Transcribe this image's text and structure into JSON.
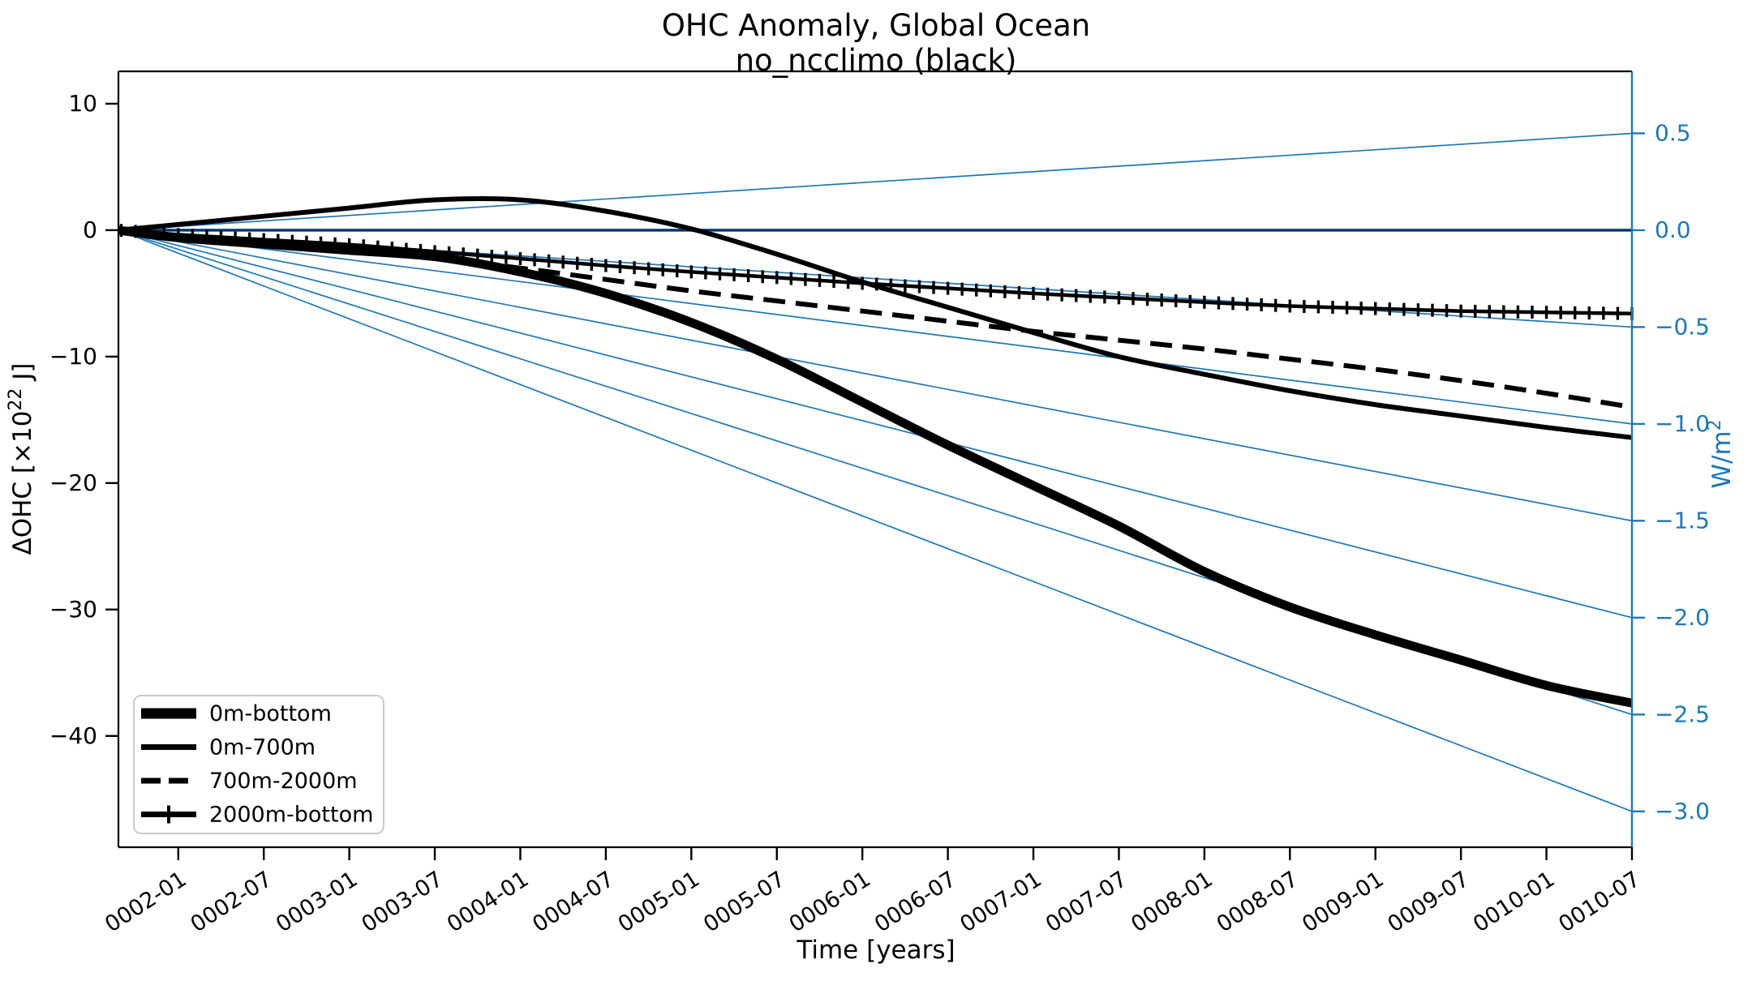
{
  "figure": {
    "title_line1": "OHC Anomaly, Global Ocean",
    "title_line2": "no_ncclimo (black)",
    "xlabel": "Time [years]",
    "ylabel_left_prefix": "ΔOHC [×10",
    "ylabel_left_sup": "22",
    "ylabel_left_suffix": " J]",
    "ylabel_right_prefix": "W/m",
    "ylabel_right_sup": "2"
  },
  "colors": {
    "black": "#000000",
    "accent_blue": "#1f77b4",
    "zero_line_navy": "#11305d",
    "legend_border": "#c9c9c9"
  },
  "legend": {
    "items": [
      {
        "label": "0m-bottom",
        "style": "thick"
      },
      {
        "label": "0m-700m",
        "style": "solid"
      },
      {
        "label": "700m-2000m",
        "style": "dashed"
      },
      {
        "label": "2000m-bottom",
        "style": "marker"
      }
    ]
  },
  "chart_data": {
    "type": "line",
    "title": "OHC Anomaly, Global Ocean — no_ncclimo (black)",
    "xlabel": "Time [years]",
    "ylabel_left": "ΔOHC [×10²² J]",
    "ylabel_right": "W/m²",
    "grid": false,
    "legend_position": "lower left",
    "x_tick_labels": [
      "0002-01",
      "0002-07",
      "0003-01",
      "0003-07",
      "0004-01",
      "0004-07",
      "0005-01",
      "0005-07",
      "0006-01",
      "0006-07",
      "0007-01",
      "0007-07",
      "0008-01",
      "0008-07",
      "0009-01",
      "0009-07",
      "0010-01",
      "0010-07"
    ],
    "x_lim_tick_units": [
      -0.7,
      17
    ],
    "y_left_ticks": [
      10,
      0,
      -10,
      -20,
      -30,
      -40
    ],
    "y_left_lim": [
      -48.8,
      12.56
    ],
    "y_right_ticks": [
      0.5,
      0.0,
      -0.5,
      -1.0,
      -1.5,
      -2.0,
      -2.5,
      -3.0
    ],
    "y_right_lim": [
      -3.185,
      0.82
    ],
    "series_t_tick_units": [
      -0.7,
      0,
      1,
      2,
      3,
      4,
      5,
      6,
      7,
      8,
      9,
      10,
      11,
      12,
      13,
      14,
      15,
      16,
      17
    ],
    "series": [
      {
        "name": "0m-bottom",
        "style": "thick",
        "color": "#000000",
        "values": [
          0,
          -0.6,
          -1.1,
          -1.6,
          -2.1,
          -3.3,
          -5.0,
          -7.3,
          -10.2,
          -13.6,
          -17.0,
          -20.2,
          -23.4,
          -27.0,
          -29.8,
          -32.0,
          -34.0,
          -36.0,
          -37.4
        ]
      },
      {
        "name": "0m-700m",
        "style": "solid",
        "color": "#000000",
        "values": [
          0,
          0.45,
          1.1,
          1.75,
          2.4,
          2.4,
          1.5,
          0.1,
          -1.9,
          -4.1,
          -6.1,
          -8.1,
          -10.0,
          -11.4,
          -12.7,
          -13.8,
          -14.7,
          -15.6,
          -16.4
        ]
      },
      {
        "name": "700m-2000m",
        "style": "dashed",
        "color": "#000000",
        "values": [
          0,
          -0.5,
          -1.0,
          -1.55,
          -2.2,
          -3.0,
          -3.9,
          -4.8,
          -5.6,
          -6.4,
          -7.2,
          -8.0,
          -8.7,
          -9.4,
          -10.2,
          -11.0,
          -11.9,
          -12.9,
          -14.0
        ]
      },
      {
        "name": "2000m-bottom",
        "style": "marker",
        "color": "#000000",
        "values": [
          0,
          -0.35,
          -0.75,
          -1.15,
          -1.7,
          -2.25,
          -2.8,
          -3.3,
          -3.75,
          -4.2,
          -4.6,
          -5.0,
          -5.35,
          -5.7,
          -6.0,
          -6.2,
          -6.4,
          -6.5,
          -6.6
        ]
      }
    ],
    "reference_lines": {
      "description": "straight heating-rate guide lines from origin, labeled by right axis",
      "end_values_wm2": [
        0.5,
        0.0,
        -0.5,
        -1.0,
        -1.5,
        -2.0,
        -2.5,
        -3.0
      ],
      "color": "#1f77b4",
      "zero_line_color": "#11305d"
    }
  }
}
